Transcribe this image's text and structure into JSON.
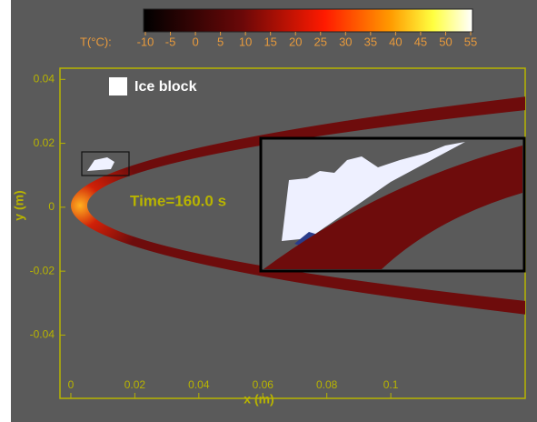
{
  "chart_data": {
    "type": "contour",
    "colorbar": {
      "label": "T(°C):",
      "lim": [
        -10,
        55
      ],
      "ticks": [
        -10,
        -5,
        0,
        5,
        10,
        15,
        20,
        25,
        30,
        35,
        40,
        45,
        50,
        55
      ]
    },
    "xlabel": "x (m)",
    "ylabel": "y (m)",
    "xlim": [
      -0.0034,
      0.142
    ],
    "ylim": [
      -0.0598,
      0.0435
    ],
    "xticks": [
      0,
      0.02,
      0.04,
      0.06,
      0.08,
      0.1
    ],
    "yticks": [
      -0.04,
      -0.02,
      0,
      0.02,
      0.04
    ],
    "legend": {
      "label": "Ice block",
      "color": "#ffffff"
    },
    "annotation": "Time=160.0 s"
  }
}
